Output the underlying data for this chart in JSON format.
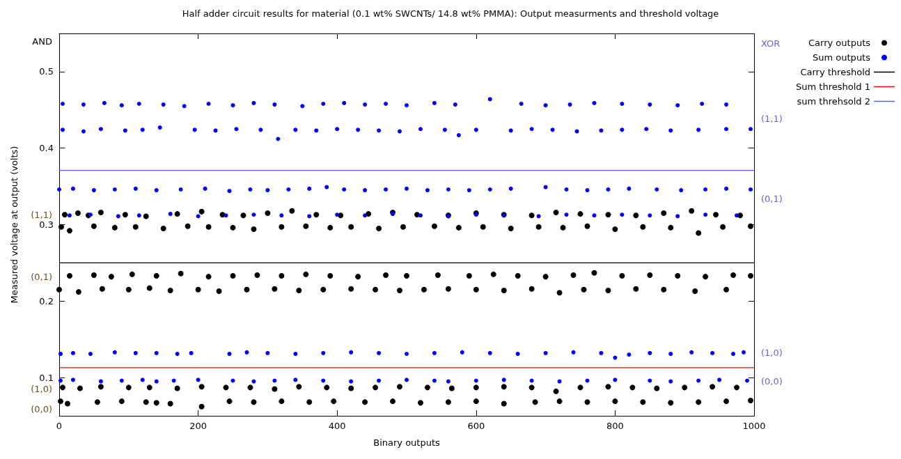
{
  "chart_data": {
    "type": "scatter",
    "title": "Half adder circuit results for material (0.1 wt% SWCNTs/ 14.8 wt% PMMA): Output measurments and threshold voltage",
    "xlabel": "Binary outputs",
    "ylabel": "Measured voltage at output (volts)",
    "xlim": [
      0,
      1000
    ],
    "xticks": [
      0,
      200,
      400,
      600,
      800,
      1000
    ],
    "ylim": [
      0.05,
      0.55
    ],
    "yticks": [
      0.1,
      0.2,
      0.3,
      0.4,
      0.5
    ],
    "grid": false,
    "legend": "top right",
    "marker": "circle",
    "series": [
      {
        "name": "Carry outputs",
        "color": "#000000",
        "x": [
          8,
          27,
          42,
          60,
          95,
          125,
          170,
          205,
          235,
          265,
          300,
          335,
          370,
          405,
          445,
          480,
          515,
          560,
          600,
          640,
          680,
          715,
          750,
          790,
          830,
          870,
          910,
          945,
          980,
          3,
          15,
          50,
          80,
          110,
          150,
          185,
          215,
          250,
          280,
          320,
          355,
          390,
          420,
          460,
          495,
          540,
          575,
          610,
          650,
          690,
          725,
          760,
          800,
          840,
          880,
          920,
          955,
          995,
          15,
          50,
          75,
          105,
          140,
          175,
          215,
          250,
          285,
          320,
          355,
          390,
          430,
          470,
          500,
          545,
          590,
          625,
          660,
          700,
          740,
          770,
          810,
          850,
          890,
          930,
          970,
          995,
          0,
          28,
          62,
          100,
          130,
          160,
          200,
          230,
          270,
          310,
          345,
          380,
          420,
          455,
          490,
          525,
          560,
          600,
          640,
          680,
          720,
          755,
          790,
          830,
          870,
          915,
          960,
          5,
          30,
          60,
          100,
          130,
          170,
          205,
          240,
          275,
          310,
          345,
          385,
          420,
          455,
          490,
          530,
          565,
          600,
          640,
          680,
          715,
          750,
          790,
          825,
          860,
          900,
          940,
          975,
          2,
          12,
          55,
          90,
          125,
          140,
          160,
          205,
          245,
          280,
          320,
          360,
          395,
          440,
          480,
          520,
          560,
          600,
          640,
          685,
          720,
          760,
          800,
          840,
          880,
          920,
          960,
          995
        ],
        "values": [
          0.313,
          0.315,
          0.312,
          0.316,
          0.313,
          0.311,
          0.314,
          0.317,
          0.313,
          0.312,
          0.315,
          0.318,
          0.313,
          0.312,
          0.314,
          0.316,
          0.313,
          0.312,
          0.315,
          0.313,
          0.312,
          0.316,
          0.314,
          0.313,
          0.312,
          0.315,
          0.318,
          0.313,
          0.312,
          0.297,
          0.292,
          0.298,
          0.296,
          0.297,
          0.295,
          0.298,
          0.297,
          0.296,
          0.294,
          0.297,
          0.298,
          0.296,
          0.297,
          0.295,
          0.297,
          0.298,
          0.296,
          0.297,
          0.295,
          0.297,
          0.296,
          0.298,
          0.294,
          0.297,
          0.296,
          0.289,
          0.297,
          0.298,
          0.233,
          0.234,
          0.232,
          0.235,
          0.233,
          0.236,
          0.232,
          0.233,
          0.234,
          0.233,
          0.235,
          0.233,
          0.232,
          0.234,
          0.233,
          0.234,
          0.233,
          0.235,
          0.233,
          0.232,
          0.234,
          0.237,
          0.233,
          0.234,
          0.233,
          0.232,
          0.234,
          0.233,
          0.215,
          0.212,
          0.216,
          0.215,
          0.217,
          0.214,
          0.215,
          0.213,
          0.215,
          0.216,
          0.214,
          0.215,
          0.216,
          0.215,
          0.214,
          0.215,
          0.216,
          0.215,
          0.214,
          0.216,
          0.211,
          0.215,
          0.214,
          0.216,
          0.215,
          0.213,
          0.215,
          0.087,
          0.086,
          0.088,
          0.087,
          0.087,
          0.086,
          0.088,
          0.087,
          0.087,
          0.085,
          0.088,
          0.087,
          0.086,
          0.087,
          0.088,
          0.087,
          0.086,
          0.087,
          0.088,
          0.087,
          0.082,
          0.087,
          0.088,
          0.087,
          0.086,
          0.087,
          0.088,
          0.087,
          0.069,
          0.066,
          0.068,
          0.069,
          0.068,
          0.067,
          0.066,
          0.062,
          0.069,
          0.068,
          0.069,
          0.068,
          0.069,
          0.068,
          0.069,
          0.067,
          0.068,
          0.069,
          0.066,
          0.068,
          0.069,
          0.068,
          0.069,
          0.068,
          0.067,
          0.068,
          0.069,
          0.07
        ]
      },
      {
        "name": "Sum outputs",
        "color": "#0000ff",
        "x": [
          5,
          35,
          65,
          90,
          115,
          150,
          180,
          215,
          250,
          280,
          310,
          350,
          380,
          410,
          440,
          470,
          500,
          540,
          570,
          620,
          665,
          700,
          735,
          770,
          810,
          850,
          890,
          925,
          960,
          5,
          35,
          60,
          95,
          120,
          145,
          195,
          225,
          255,
          290,
          315,
          340,
          370,
          400,
          430,
          460,
          490,
          520,
          555,
          575,
          600,
          650,
          680,
          710,
          745,
          780,
          810,
          845,
          880,
          920,
          960,
          995,
          0,
          20,
          50,
          80,
          110,
          140,
          175,
          210,
          245,
          275,
          300,
          330,
          360,
          385,
          410,
          440,
          470,
          500,
          530,
          560,
          590,
          620,
          650,
          700,
          730,
          760,
          790,
          820,
          860,
          895,
          930,
          960,
          995,
          15,
          45,
          85,
          115,
          160,
          200,
          240,
          280,
          320,
          360,
          400,
          440,
          480,
          520,
          560,
          600,
          640,
          690,
          730,
          770,
          810,
          850,
          890,
          930,
          975,
          2,
          20,
          45,
          80,
          110,
          140,
          170,
          190,
          245,
          270,
          300,
          340,
          380,
          420,
          460,
          500,
          540,
          580,
          620,
          660,
          700,
          740,
          780,
          800,
          820,
          850,
          880,
          910,
          940,
          970,
          985,
          2,
          20,
          60,
          90,
          120,
          140,
          165,
          200,
          250,
          280,
          310,
          340,
          380,
          420,
          460,
          500,
          540,
          560,
          600,
          640,
          680,
          720,
          760,
          800,
          850,
          880,
          920,
          950,
          990
        ],
        "values": [
          0.458,
          0.457,
          0.459,
          0.456,
          0.458,
          0.457,
          0.455,
          0.458,
          0.456,
          0.459,
          0.457,
          0.455,
          0.458,
          0.459,
          0.457,
          0.458,
          0.456,
          0.459,
          0.457,
          0.464,
          0.458,
          0.456,
          0.457,
          0.459,
          0.458,
          0.457,
          0.456,
          0.458,
          0.457,
          0.424,
          0.422,
          0.425,
          0.423,
          0.424,
          0.427,
          0.424,
          0.423,
          0.425,
          0.424,
          0.412,
          0.424,
          0.423,
          0.425,
          0.424,
          0.423,
          0.422,
          0.425,
          0.424,
          0.417,
          0.424,
          0.423,
          0.425,
          0.424,
          0.422,
          0.423,
          0.424,
          0.425,
          0.423,
          0.424,
          0.425,
          0.425,
          0.346,
          0.347,
          0.345,
          0.346,
          0.347,
          0.345,
          0.346,
          0.347,
          0.344,
          0.346,
          0.345,
          0.346,
          0.347,
          0.349,
          0.346,
          0.345,
          0.346,
          0.347,
          0.345,
          0.346,
          0.345,
          0.346,
          0.347,
          0.349,
          0.346,
          0.345,
          0.346,
          0.347,
          0.346,
          0.345,
          0.346,
          0.347,
          0.346,
          0.312,
          0.313,
          0.311,
          0.312,
          0.314,
          0.311,
          0.312,
          0.313,
          0.312,
          0.311,
          0.313,
          0.312,
          0.314,
          0.312,
          0.311,
          0.313,
          0.312,
          0.311,
          0.313,
          0.312,
          0.313,
          0.312,
          0.311,
          0.313,
          0.312,
          0.131,
          0.132,
          0.131,
          0.133,
          0.132,
          0.132,
          0.131,
          0.132,
          0.131,
          0.133,
          0.132,
          0.131,
          0.132,
          0.133,
          0.132,
          0.131,
          0.132,
          0.133,
          0.132,
          0.131,
          0.132,
          0.133,
          0.132,
          0.126,
          0.13,
          0.132,
          0.131,
          0.133,
          0.132,
          0.131,
          0.133,
          0.096,
          0.097,
          0.095,
          0.096,
          0.097,
          0.095,
          0.096,
          0.097,
          0.096,
          0.095,
          0.096,
          0.097,
          0.096,
          0.095,
          0.096,
          0.097,
          0.096,
          0.095,
          0.096,
          0.097,
          0.096,
          0.095,
          0.096,
          0.097,
          0.096,
          0.095,
          0.096,
          0.097,
          0.096
        ]
      }
    ],
    "ref_lines": [
      {
        "axis": "y",
        "value": 0.25,
        "label": "Carry threshold",
        "color": "#000000"
      },
      {
        "axis": "y",
        "value": 0.113,
        "label": "Sum threshold 1",
        "color": "#ff0000"
      },
      {
        "axis": "y",
        "value": 0.371,
        "label": "sum threhsold 2",
        "color": "#5b5bff"
      }
    ],
    "annotations": [
      "AND",
      "(1,1)",
      "(0,1)",
      "(1,0)",
      "(0,0)",
      "XOR",
      "(1,1)",
      "(0,1)",
      "(1,0)",
      "(0,0)"
    ]
  }
}
